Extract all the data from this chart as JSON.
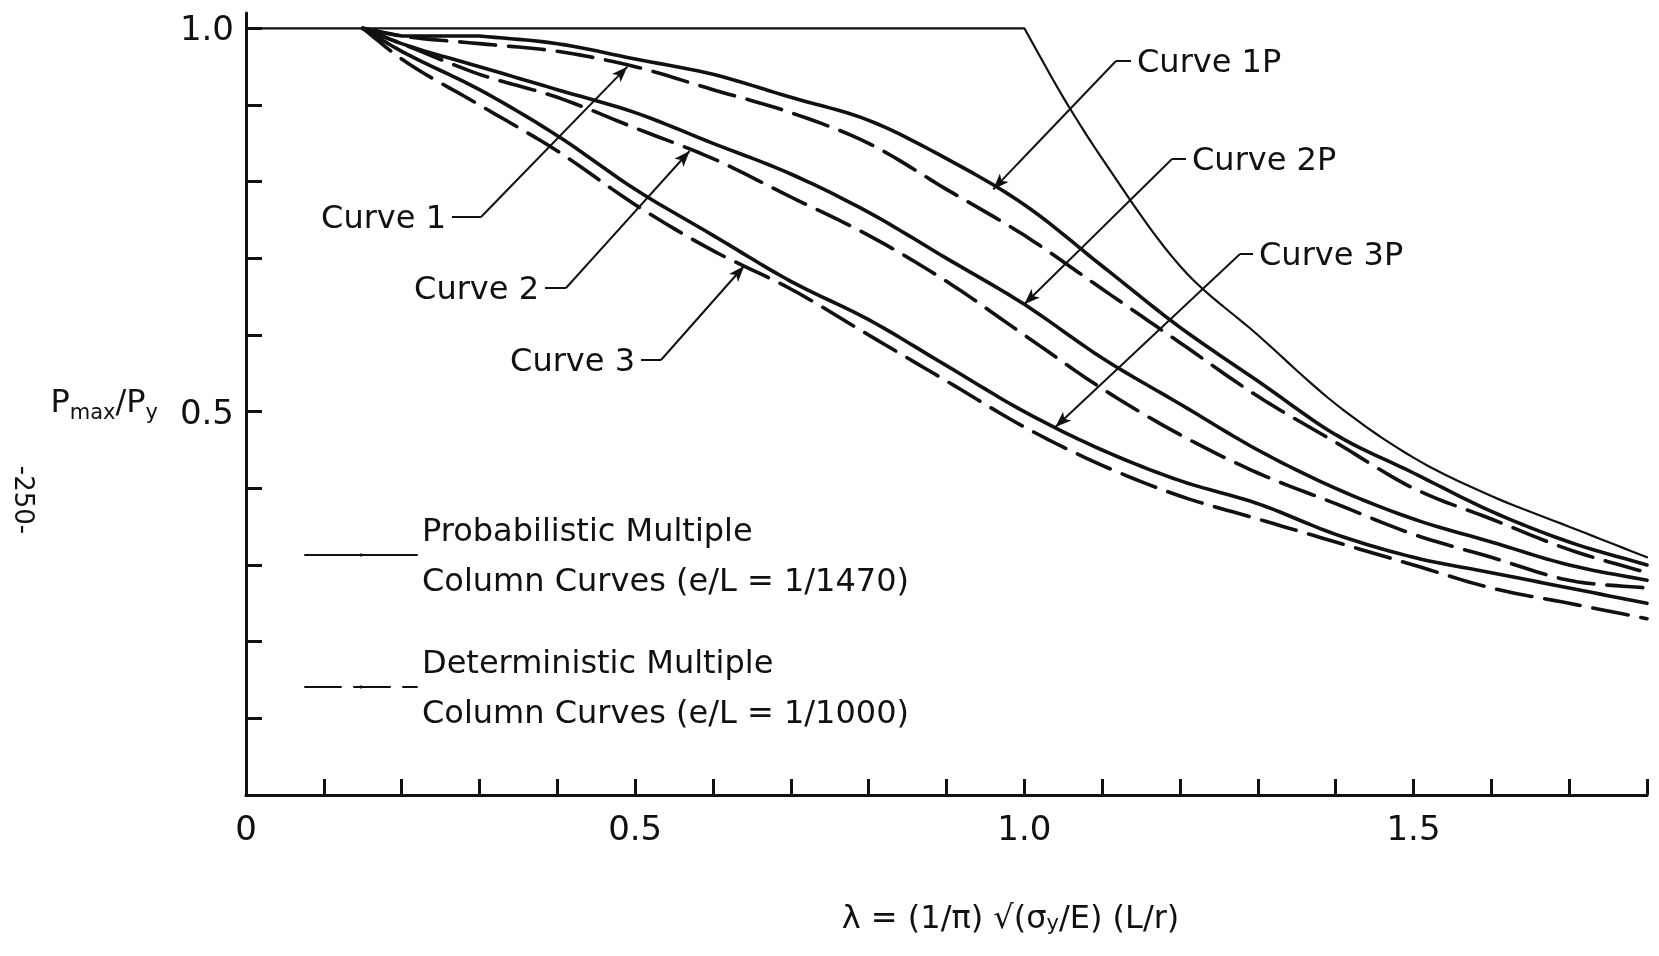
{
  "chart_data": {
    "type": "line",
    "xlabel": "λ = (1/π) √(σ$_{y}$/E) (L/r)",
    "ylabel": "P$_{max}$/P$_{y}$",
    "x": [
      0.15,
      0.2,
      0.3,
      0.4,
      0.5,
      0.6,
      0.7,
      0.8,
      0.9,
      1.0,
      1.1,
      1.2,
      1.3,
      1.4,
      1.5,
      1.6,
      1.7,
      1.8
    ],
    "series": [
      {
        "name": "Probabilistic Multiple Column Curves (e/L = 1/1470)",
        "color": "#111111",
        "line_style": "solid",
        "values": [
          1.0,
          0.99,
          0.99,
          0.98,
          0.96,
          0.94,
          0.91,
          0.88,
          0.83,
          0.77,
          0.69,
          0.61,
          0.54,
          0.47,
          0.42,
          0.37,
          0.33,
          0.3
        ]
      },
      {
        "color": "#111111",
        "line_style": "solid",
        "values": [
          1.0,
          0.98,
          0.95,
          0.92,
          0.89,
          0.85,
          0.81,
          0.76,
          0.7,
          0.64,
          0.57,
          0.51,
          0.45,
          0.4,
          0.36,
          0.33,
          0.3,
          0.28
        ]
      },
      {
        "color": "#111111",
        "line_style": "solid",
        "values": [
          1.0,
          0.97,
          0.92,
          0.86,
          0.79,
          0.73,
          0.67,
          0.62,
          0.56,
          0.5,
          0.45,
          0.41,
          0.38,
          0.34,
          0.31,
          0.29,
          0.27,
          0.25
        ]
      },
      {
        "name": "Deterministic Multiple Column Curves (e/L = 1/1000)",
        "color": "#111111",
        "line_style": "dashed",
        "values": [
          1.0,
          0.99,
          0.98,
          0.97,
          0.95,
          0.92,
          0.89,
          0.85,
          0.79,
          0.73,
          0.66,
          0.59,
          0.52,
          0.46,
          0.4,
          0.36,
          0.32,
          0.29
        ]
      },
      {
        "color": "#111111",
        "line_style": "dashed",
        "values": [
          1.0,
          0.98,
          0.94,
          0.91,
          0.87,
          0.83,
          0.78,
          0.73,
          0.67,
          0.6,
          0.53,
          0.47,
          0.42,
          0.38,
          0.34,
          0.31,
          0.28,
          0.27
        ]
      },
      {
        "color": "#111111",
        "line_style": "dashed",
        "values": [
          1.0,
          0.96,
          0.9,
          0.84,
          0.77,
          0.71,
          0.66,
          0.6,
          0.54,
          0.48,
          0.43,
          0.39,
          0.36,
          0.33,
          0.3,
          0.27,
          0.25,
          0.23
        ]
      },
      {
        "color": "#111111",
        "line_style": "solid",
        "x": [
          0,
          1.0,
          1.05,
          1.1,
          1.2,
          1.3,
          1.4,
          1.5,
          1.6,
          1.7,
          1.8
        ],
        "values": [
          1.0,
          1.0,
          0.91,
          0.83,
          0.69,
          0.6,
          0.51,
          0.44,
          0.39,
          0.35,
          0.31
        ]
      }
    ],
    "xlim": [
      0,
      1.8
    ],
    "ylim": [
      0,
      1.02
    ],
    "xticks": [
      0,
      {
        "value": 0.1,
        "label": null
      },
      {
        "value": 0.2,
        "label": null
      },
      {
        "value": 0.3,
        "label": null
      },
      {
        "value": 0.4,
        "label": null
      },
      0.5,
      {
        "value": 0.6,
        "label": null
      },
      {
        "value": 0.7,
        "label": null
      },
      {
        "value": 0.8,
        "label": null
      },
      {
        "value": 0.9,
        "label": null
      },
      {
        "value": 1,
        "label": "1.0"
      },
      {
        "value": 1.1,
        "label": null
      },
      {
        "value": 1.2,
        "label": null
      },
      {
        "value": 1.3,
        "label": null
      },
      {
        "value": 1.4,
        "label": null
      },
      1.5,
      {
        "value": 1.6,
        "label": null
      },
      {
        "value": 1.7,
        "label": null
      },
      {
        "value": 1.8,
        "label": null
      }
    ],
    "yticks": [
      {
        "value": 0.1,
        "label": null
      },
      {
        "value": 0.2,
        "label": null
      },
      {
        "value": 0.3,
        "label": null
      },
      {
        "value": 0.4,
        "label": null
      },
      0.5,
      {
        "value": 0.6,
        "label": null
      },
      {
        "value": 0.7,
        "label": null
      },
      {
        "value": 0.8,
        "label": null
      },
      {
        "value": 0.9,
        "label": null
      },
      {
        "value": 1,
        "label": "1.0"
      }
    ],
    "annotations": [
      "-250-",
      {
        "text": "Curve 1P",
        "x": 0.96,
        "y": 0.79
      },
      {
        "text": "Curve 2P",
        "x": 1.0,
        "y": 0.64
      },
      {
        "text": "Curve 3P",
        "x": 1.04,
        "y": 0.48
      },
      {
        "text": "Curve 1",
        "x": 0.49,
        "y": 0.95
      },
      {
        "text": "Curve 2",
        "x": 0.57,
        "y": 0.84
      },
      {
        "text": "Curve 3",
        "x": 0.64,
        "y": 0.69
      }
    ],
    "legend": "bottom left",
    "grid": false,
    "marker": "none"
  }
}
